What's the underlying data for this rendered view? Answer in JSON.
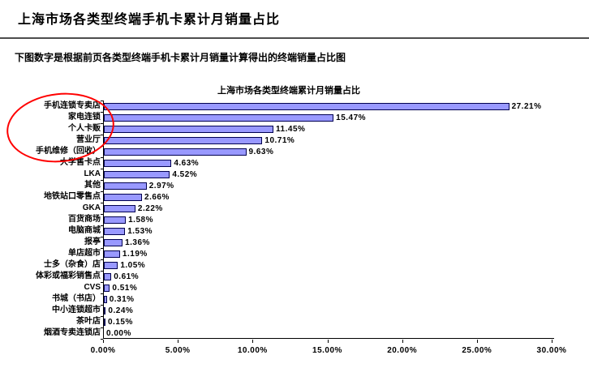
{
  "page": {
    "title": "上海市场各类型终端手机卡累计月销量占比",
    "subtitle": "下图数字是根据前页各类型终端手机卡累计月销量计算得出的终端销量占比图"
  },
  "chart_data": {
    "type": "bar",
    "orientation": "horizontal",
    "title": "上海市场各类型终端累计月销量占比",
    "categories": [
      "手机连锁专卖店",
      "家电连锁",
      "个人卡贩",
      "营业厅",
      "手机维修（回收）",
      "大学售卡点",
      "LKA",
      "其他",
      "地铁站口零售点",
      "GKA",
      "百货商场",
      "电脑商城",
      "报亭",
      "单店超市",
      "士多（杂食）店",
      "体彩或福彩销售点",
      "CVS",
      "书城（书店）",
      "中小连锁超市",
      "茶叶店",
      "烟酒专卖连锁店"
    ],
    "values": [
      27.21,
      15.47,
      11.45,
      10.71,
      9.63,
      4.63,
      4.52,
      2.97,
      2.66,
      2.22,
      1.58,
      1.53,
      1.36,
      1.19,
      1.05,
      0.61,
      0.51,
      0.31,
      0.24,
      0.15,
      0.0
    ],
    "value_labels": [
      "27.21%",
      "15.47%",
      "11.45%",
      "10.71%",
      "9.63%",
      "4.63%",
      "4.52%",
      "2.97%",
      "2.66%",
      "2.22%",
      "1.58%",
      "1.53%",
      "1.36%",
      "1.19%",
      "1.05%",
      "0.61%",
      "0.51%",
      "0.31%",
      "0.24%",
      "0.15%",
      "0.00%"
    ],
    "xlim": [
      0,
      30
    ],
    "x_ticks": [
      "0.00%",
      "5.00%",
      "10.00%",
      "15.00%",
      "20.00%",
      "25.00%",
      "30.00%"
    ],
    "x_tick_values": [
      0,
      5,
      10,
      15,
      20,
      25,
      30
    ],
    "grid": false,
    "legend": "none",
    "bar_color": "#9999FF",
    "bar_border_color": "#000050",
    "annotation": {
      "shape": "ellipse",
      "color": "#FF0000",
      "note": "red hand-drawn oval circling the top five category labels"
    }
  }
}
